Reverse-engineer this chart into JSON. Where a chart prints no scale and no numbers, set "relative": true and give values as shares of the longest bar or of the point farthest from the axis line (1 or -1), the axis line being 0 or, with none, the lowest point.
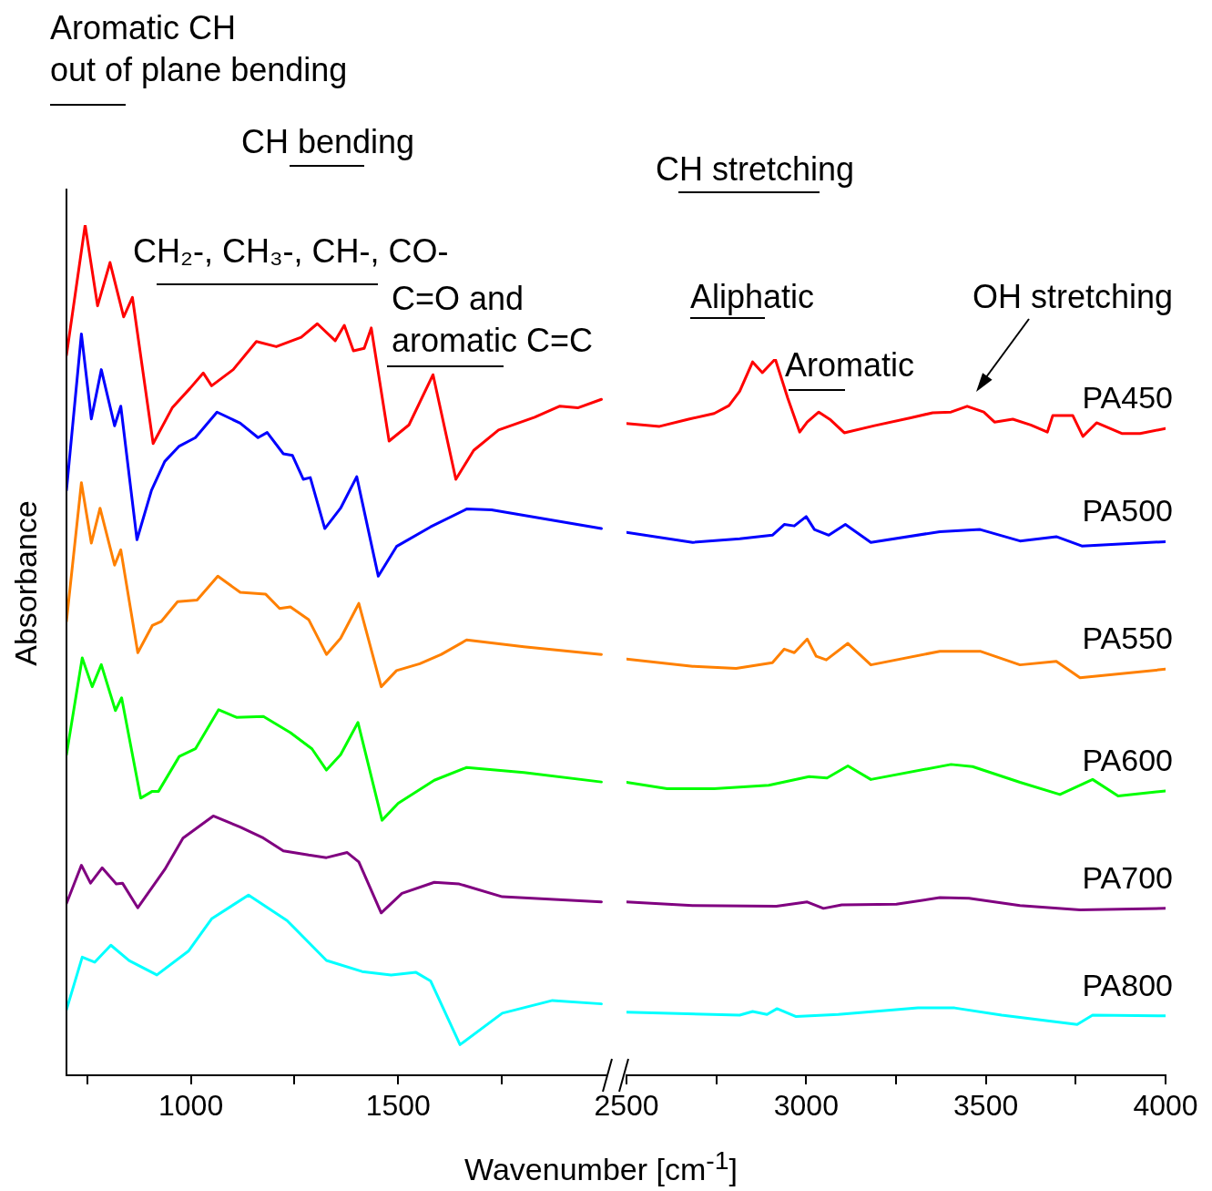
{
  "chart_data": [
    {
      "type": "line",
      "relative": true,
      "tick_labels": "x",
      "ylabel": "Absorbance",
      "xlabel": "Wavenumber [cm$^{-1}$]",
      "xlim": [
        700,
        2000
      ],
      "xticks": [
        {
          "value": 750,
          "label": null
        },
        1000,
        {
          "value": 1250,
          "label": null
        },
        1500,
        {
          "value": 1750,
          "label": null
        }
      ],
      "annotations": [
        "Aromatic CH\nout of plane bending",
        "CH bending",
        "CH₂-, CH₃-, CH-, CO-",
        "C=O and\naromatic C=C"
      ],
      "series": [
        {
          "color": "#ff0000",
          "x": [
            700,
            745,
            775,
            805,
            838,
            859,
            909,
            955,
            998,
            1030,
            1050,
            1102,
            1158,
            1206,
            1266,
            1305,
            1348,
            1370,
            1392,
            1418,
            1435,
            1478,
            1526,
            1584,
            1639,
            1682,
            1742,
            1829,
            1890,
            1933,
            1990
          ],
          "values": [
            0.847,
            1,
            0.905,
            0.956,
            0.892,
            0.915,
            0.743,
            0.785,
            0.808,
            0.826,
            0.811,
            0.83,
            0.863,
            0.857,
            0.868,
            0.884,
            0.864,
            0.882,
            0.852,
            0.855,
            0.879,
            0.746,
            0.765,
            0.824,
            0.701,
            0.735,
            0.759,
            0.774,
            0.787,
            0.785,
            0.795
          ]
        },
        {
          "color": "#0000ff",
          "x": [
            700,
            736,
            760,
            784,
            816,
            831,
            870,
            905,
            937,
            972,
            1011,
            1063,
            1119,
            1162,
            1184,
            1223,
            1245,
            1271,
            1288,
            1323,
            1361,
            1400,
            1452,
            1496,
            1578,
            1665,
            1725,
            1990
          ],
          "values": [
            0.688,
            0.872,
            0.772,
            0.83,
            0.764,
            0.787,
            0.63,
            0.688,
            0.722,
            0.74,
            0.75,
            0.78,
            0.767,
            0.75,
            0.756,
            0.731,
            0.729,
            0.701,
            0.703,
            0.643,
            0.667,
            0.704,
            0.587,
            0.622,
            0.645,
            0.666,
            0.665,
            0.643
          ]
        },
        {
          "color": "#ff8000",
          "x": [
            700,
            736,
            760,
            781,
            816,
            831,
            872,
            907,
            929,
            968,
            1015,
            1065,
            1119,
            1180,
            1214,
            1240,
            1284,
            1327,
            1361,
            1405,
            1459,
            1496,
            1552,
            1604,
            1665,
            1803,
            1990
          ],
          "values": [
            0.534,
            0.697,
            0.626,
            0.667,
            0.6,
            0.618,
            0.497,
            0.529,
            0.534,
            0.557,
            0.559,
            0.587,
            0.568,
            0.566,
            0.549,
            0.551,
            0.536,
            0.495,
            0.514,
            0.555,
            0.457,
            0.476,
            0.484,
            0.495,
            0.512,
            0.504,
            0.495
          ]
        },
        {
          "color": "#00ff00",
          "x": [
            700,
            738,
            762,
            784,
            818,
            833,
            879,
            907,
            922,
            972,
            1011,
            1067,
            1110,
            1175,
            1240,
            1292,
            1327,
            1361,
            1403,
            1461,
            1500,
            1587,
            1665,
            1803,
            1990
          ],
          "values": [
            0.377,
            0.491,
            0.457,
            0.483,
            0.429,
            0.444,
            0.326,
            0.334,
            0.334,
            0.375,
            0.384,
            0.43,
            0.421,
            0.422,
            0.403,
            0.384,
            0.359,
            0.377,
            0.415,
            0.3,
            0.32,
            0.347,
            0.362,
            0.356,
            0.345
          ]
        },
        {
          "color": "#800080",
          "x": [
            700,
            736,
            758,
            786,
            820,
            835,
            872,
            937,
            981,
            1054,
            1119,
            1175,
            1223,
            1284,
            1327,
            1377,
            1405,
            1459,
            1509,
            1587,
            1647,
            1751,
            1990
          ],
          "values": [
            0.202,
            0.247,
            0.226,
            0.244,
            0.225,
            0.226,
            0.197,
            0.242,
            0.279,
            0.305,
            0.292,
            0.279,
            0.264,
            0.259,
            0.256,
            0.262,
            0.251,
            0.191,
            0.214,
            0.227,
            0.225,
            0.21,
            0.204
          ]
        },
        {
          "color": "#00ffff",
          "x": [
            700,
            738,
            768,
            807,
            851,
            918,
            994,
            1050,
            1139,
            1232,
            1327,
            1413,
            1483,
            1543,
            1578,
            1649,
            1751,
            1872,
            1990
          ],
          "values": [
            0.077,
            0.139,
            0.133,
            0.153,
            0.135,
            0.118,
            0.146,
            0.184,
            0.212,
            0.182,
            0.135,
            0.122,
            0.118,
            0.121,
            0.111,
            0.036,
            0.073,
            0.088,
            0.084
          ]
        }
      ]
    },
    {
      "type": "line",
      "relative": true,
      "tick_labels": "x",
      "xlim": [
        2500,
        4000
      ],
      "xticks": [
        2500,
        {
          "value": 2750,
          "label": null
        },
        3000,
        {
          "value": 3250,
          "label": null
        },
        3500,
        {
          "value": 3750,
          "label": null
        },
        4000
      ],
      "annotations": [
        "CH stretching",
        "Aliphatic",
        "Aromatic",
        "OH stretching"
      ],
      "series": [
        {
          "name": "PA450",
          "color": "#ff0000",
          "x": [
            2500,
            2592,
            2673,
            2744,
            2785,
            2815,
            2851,
            2878,
            2914,
            2949,
            2982,
            3003,
            3035,
            3068,
            3106,
            3190,
            3291,
            3352,
            3403,
            3448,
            3494,
            3524,
            3575,
            3625,
            3671,
            3686,
            3742,
            3770,
            3808,
            3878,
            3929,
            4000
          ],
          "values": [
            0.91,
            0.906,
            0.916,
            0.924,
            0.935,
            0.955,
            0.996,
            0.981,
            1,
            0.945,
            0.898,
            0.912,
            0.926,
            0.915,
            0.897,
            0.907,
            0.918,
            0.925,
            0.926,
            0.934,
            0.926,
            0.912,
            0.916,
            0.908,
            0.898,
            0.921,
            0.921,
            0.892,
            0.911,
            0.896,
            0.896,
            0.903
          ]
        },
        {
          "name": "PA500",
          "color": "#0000ff",
          "x": [
            2500,
            2684,
            2815,
            2906,
            2939,
            2967,
            3000,
            3023,
            3063,
            3109,
            3180,
            3372,
            3484,
            3595,
            3696,
            3767,
            4000
          ],
          "values": [
            0.758,
            0.744,
            0.749,
            0.754,
            0.769,
            0.767,
            0.78,
            0.762,
            0.754,
            0.769,
            0.744,
            0.759,
            0.762,
            0.746,
            0.752,
            0.739,
            0.745
          ]
        },
        {
          "name": "PA550",
          "color": "#ff8000",
          "x": [
            2500,
            2684,
            2805,
            2906,
            2939,
            2967,
            3003,
            3028,
            3056,
            3116,
            3180,
            3372,
            3484,
            3595,
            3696,
            3762,
            4000
          ],
          "values": [
            0.581,
            0.571,
            0.568,
            0.576,
            0.595,
            0.59,
            0.609,
            0.585,
            0.58,
            0.603,
            0.573,
            0.592,
            0.592,
            0.573,
            0.578,
            0.555,
            0.567
          ]
        },
        {
          "name": "PA600",
          "color": "#00ff00",
          "x": [
            2500,
            2613,
            2744,
            2896,
            3008,
            3058,
            3116,
            3180,
            3403,
            3463,
            3595,
            3706,
            3797,
            3868,
            4000
          ],
          "values": [
            0.409,
            0.4,
            0.4,
            0.405,
            0.417,
            0.415,
            0.432,
            0.413,
            0.434,
            0.431,
            0.409,
            0.392,
            0.413,
            0.39,
            0.397
          ]
        },
        {
          "name": "PA700",
          "color": "#800080",
          "x": [
            2500,
            2684,
            2917,
            3003,
            3048,
            3099,
            3251,
            3372,
            3453,
            3595,
            3762,
            4000
          ],
          "values": [
            0.242,
            0.237,
            0.236,
            0.242,
            0.233,
            0.238,
            0.239,
            0.248,
            0.247,
            0.237,
            0.231,
            0.233
          ]
        },
        {
          "name": "PA800",
          "color": "#00ffff",
          "x": [
            2500,
            2815,
            2851,
            2891,
            2919,
            2972,
            3089,
            3311,
            3413,
            3544,
            3754,
            3797,
            4000
          ],
          "values": [
            0.088,
            0.084,
            0.089,
            0.085,
            0.093,
            0.082,
            0.085,
            0.094,
            0.094,
            0.084,
            0.071,
            0.084,
            0.083
          ]
        }
      ]
    }
  ]
}
